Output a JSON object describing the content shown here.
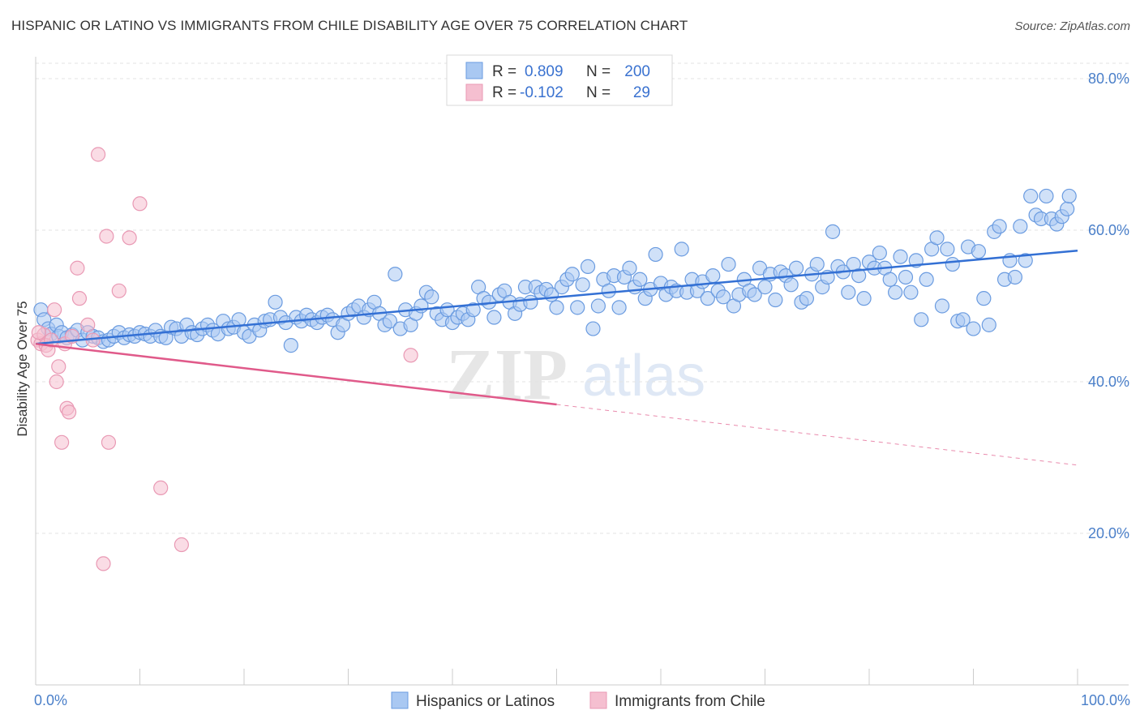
{
  "title": "HISPANIC OR LATINO VS IMMIGRANTS FROM CHILE DISABILITY AGE OVER 75 CORRELATION CHART",
  "source": "Source: ZipAtlas.com",
  "watermark": {
    "zip": "ZIP",
    "atlas": "atlas"
  },
  "colors": {
    "blue": "#a9c8f2",
    "blue_stroke": "#6a9be0",
    "blue_line": "#3370d4",
    "pink": "#f5bfd0",
    "pink_stroke": "#e999b4",
    "pink_line": "#e05a8a",
    "tick_text": "#4a7fc9",
    "grid": "#e3e3e3"
  },
  "legend": {
    "r_label": "R =",
    "n_label": "N =",
    "rows": [
      {
        "r": "0.809",
        "n": "200",
        "color": "blue"
      },
      {
        "r": "-0.102",
        "n": "29",
        "color": "pink"
      }
    ]
  },
  "chart_data": {
    "type": "scatter",
    "xlabel": "",
    "ylabel": "Disability Age Over 75",
    "xlim": [
      0,
      100
    ],
    "ylim": [
      0,
      85
    ],
    "x_tick_labels": [
      "0.0%",
      "100.0%"
    ],
    "y_ticks": [
      20,
      40,
      60,
      80
    ],
    "y_tick_labels": [
      "20.0%",
      "40.0%",
      "60.0%",
      "80.0%"
    ],
    "grid": true,
    "legend_position": "top-center",
    "series": [
      {
        "name": "Hispanics or Latinos",
        "color": "blue",
        "trendline": {
          "x": [
            0,
            100
          ],
          "y": [
            45.0,
            57.3
          ],
          "dashed_after": null
        },
        "points": [
          [
            0.5,
            49.5
          ],
          [
            0.8,
            48.2
          ],
          [
            1.2,
            47.0
          ],
          [
            1.5,
            46.3
          ],
          [
            2.0,
            47.5
          ],
          [
            2.2,
            46.0
          ],
          [
            2.5,
            46.5
          ],
          [
            3.0,
            45.8
          ],
          [
            3.5,
            46.2
          ],
          [
            4.0,
            46.8
          ],
          [
            4.5,
            45.5
          ],
          [
            5.0,
            46.5
          ],
          [
            5.5,
            46.0
          ],
          [
            6.0,
            45.8
          ],
          [
            6.5,
            45.3
          ],
          [
            7.0,
            45.5
          ],
          [
            7.5,
            46.0
          ],
          [
            8.0,
            46.5
          ],
          [
            8.5,
            45.8
          ],
          [
            9.0,
            46.2
          ],
          [
            9.5,
            46.0
          ],
          [
            10.0,
            46.5
          ],
          [
            10.5,
            46.3
          ],
          [
            11.0,
            46.0
          ],
          [
            11.5,
            46.8
          ],
          [
            12.0,
            46.0
          ],
          [
            12.5,
            45.8
          ],
          [
            13.0,
            47.2
          ],
          [
            13.5,
            47.0
          ],
          [
            14.0,
            46.0
          ],
          [
            14.5,
            47.5
          ],
          [
            15.0,
            46.5
          ],
          [
            15.5,
            46.2
          ],
          [
            16.0,
            47.0
          ],
          [
            16.5,
            47.5
          ],
          [
            17.0,
            46.8
          ],
          [
            17.5,
            46.3
          ],
          [
            18.0,
            48.0
          ],
          [
            18.5,
            47.0
          ],
          [
            19.0,
            47.2
          ],
          [
            19.5,
            48.2
          ],
          [
            20.0,
            46.5
          ],
          [
            20.5,
            46.0
          ],
          [
            21.0,
            47.5
          ],
          [
            21.5,
            46.8
          ],
          [
            22.0,
            48.0
          ],
          [
            22.5,
            48.2
          ],
          [
            23.0,
            50.5
          ],
          [
            23.5,
            48.5
          ],
          [
            24.0,
            47.8
          ],
          [
            24.5,
            44.8
          ],
          [
            25.0,
            48.5
          ],
          [
            25.5,
            48.0
          ],
          [
            26.0,
            48.8
          ],
          [
            26.5,
            48.2
          ],
          [
            27.0,
            47.8
          ],
          [
            27.5,
            48.5
          ],
          [
            28.0,
            48.8
          ],
          [
            28.5,
            48.2
          ],
          [
            29.0,
            46.5
          ],
          [
            29.5,
            47.5
          ],
          [
            30.0,
            49.0
          ],
          [
            30.5,
            49.5
          ],
          [
            31.0,
            50.0
          ],
          [
            31.5,
            48.5
          ],
          [
            32.0,
            49.5
          ],
          [
            32.5,
            50.5
          ],
          [
            33.0,
            49.0
          ],
          [
            33.5,
            47.5
          ],
          [
            34.0,
            48.0
          ],
          [
            34.5,
            54.2
          ],
          [
            35.0,
            47.0
          ],
          [
            35.5,
            49.5
          ],
          [
            36.0,
            47.5
          ],
          [
            36.5,
            49.0
          ],
          [
            37.0,
            50.0
          ],
          [
            37.5,
            51.8
          ],
          [
            38.0,
            51.2
          ],
          [
            38.5,
            49.0
          ],
          [
            39.0,
            48.2
          ],
          [
            39.5,
            49.5
          ],
          [
            40.0,
            47.8
          ],
          [
            40.5,
            48.5
          ],
          [
            41.0,
            49.0
          ],
          [
            41.5,
            48.2
          ],
          [
            42.0,
            49.5
          ],
          [
            42.5,
            52.5
          ],
          [
            43.0,
            51.0
          ],
          [
            43.5,
            50.5
          ],
          [
            44.0,
            48.5
          ],
          [
            44.5,
            51.5
          ],
          [
            45.0,
            52.0
          ],
          [
            45.5,
            50.5
          ],
          [
            46.0,
            49.0
          ],
          [
            46.5,
            50.2
          ],
          [
            47.0,
            52.5
          ],
          [
            47.5,
            50.5
          ],
          [
            48.0,
            52.5
          ],
          [
            48.5,
            51.8
          ],
          [
            49.0,
            52.2
          ],
          [
            49.5,
            51.5
          ],
          [
            50.0,
            49.8
          ],
          [
            50.5,
            52.5
          ],
          [
            51.0,
            53.5
          ],
          [
            51.5,
            54.2
          ],
          [
            52.0,
            49.8
          ],
          [
            52.5,
            52.8
          ],
          [
            53.0,
            55.2
          ],
          [
            53.5,
            47.0
          ],
          [
            54.0,
            50.0
          ],
          [
            54.5,
            53.5
          ],
          [
            55.0,
            52.0
          ],
          [
            55.5,
            54.0
          ],
          [
            56.0,
            49.8
          ],
          [
            56.5,
            53.8
          ],
          [
            57.0,
            55.0
          ],
          [
            57.5,
            52.5
          ],
          [
            58.0,
            53.5
          ],
          [
            58.5,
            51.0
          ],
          [
            59.0,
            52.2
          ],
          [
            59.5,
            56.8
          ],
          [
            60.0,
            53.0
          ],
          [
            60.5,
            51.5
          ],
          [
            61.0,
            52.5
          ],
          [
            61.5,
            52.0
          ],
          [
            62.0,
            57.5
          ],
          [
            62.5,
            51.8
          ],
          [
            63.0,
            53.5
          ],
          [
            63.5,
            52.0
          ],
          [
            64.0,
            53.2
          ],
          [
            64.5,
            51.0
          ],
          [
            65.0,
            54.0
          ],
          [
            65.5,
            52.0
          ],
          [
            66.0,
            51.2
          ],
          [
            66.5,
            55.5
          ],
          [
            67.0,
            50.0
          ],
          [
            67.5,
            51.5
          ],
          [
            68.0,
            53.5
          ],
          [
            68.5,
            52.0
          ],
          [
            69.0,
            51.5
          ],
          [
            69.5,
            55.0
          ],
          [
            70.0,
            52.5
          ],
          [
            70.5,
            54.2
          ],
          [
            71.0,
            50.8
          ],
          [
            71.5,
            54.5
          ],
          [
            72.0,
            54.0
          ],
          [
            72.5,
            52.8
          ],
          [
            73.0,
            55.0
          ],
          [
            73.5,
            50.5
          ],
          [
            74.0,
            51.0
          ],
          [
            74.5,
            54.2
          ],
          [
            75.0,
            55.5
          ],
          [
            75.5,
            52.5
          ],
          [
            76.0,
            53.8
          ],
          [
            76.5,
            59.8
          ],
          [
            77.0,
            55.2
          ],
          [
            77.5,
            54.5
          ],
          [
            78.0,
            51.8
          ],
          [
            78.5,
            55.5
          ],
          [
            79.0,
            54.0
          ],
          [
            79.5,
            51.0
          ],
          [
            80.0,
            55.8
          ],
          [
            80.5,
            55.0
          ],
          [
            81.0,
            57.0
          ],
          [
            81.5,
            55.0
          ],
          [
            82.0,
            53.5
          ],
          [
            82.5,
            51.8
          ],
          [
            83.0,
            56.5
          ],
          [
            83.5,
            53.8
          ],
          [
            84.0,
            51.8
          ],
          [
            84.5,
            56.0
          ],
          [
            85.0,
            48.2
          ],
          [
            85.5,
            53.5
          ],
          [
            86.0,
            57.5
          ],
          [
            86.5,
            59.0
          ],
          [
            87.0,
            50.0
          ],
          [
            87.5,
            57.5
          ],
          [
            88.0,
            55.5
          ],
          [
            88.5,
            48.0
          ],
          [
            89.0,
            48.2
          ],
          [
            89.5,
            57.8
          ],
          [
            90.0,
            47.0
          ],
          [
            90.5,
            57.2
          ],
          [
            91.0,
            51.0
          ],
          [
            91.5,
            47.5
          ],
          [
            92.0,
            59.8
          ],
          [
            92.5,
            60.5
          ],
          [
            93.0,
            53.5
          ],
          [
            93.5,
            56.0
          ],
          [
            94.0,
            53.8
          ],
          [
            94.5,
            60.5
          ],
          [
            95.0,
            56.0
          ],
          [
            95.5,
            64.5
          ],
          [
            96.0,
            62.0
          ],
          [
            96.5,
            61.5
          ],
          [
            97.0,
            64.5
          ],
          [
            97.5,
            61.5
          ],
          [
            98.0,
            60.8
          ],
          [
            98.5,
            61.8
          ],
          [
            99.0,
            62.8
          ],
          [
            99.2,
            64.5
          ]
        ]
      },
      {
        "name": "Immigrants from Chile",
        "color": "pink",
        "trendline": {
          "x": [
            0,
            50,
            100
          ],
          "y": [
            45.0,
            37.0,
            29.0
          ],
          "dashed_after": 50
        },
        "points": [
          [
            0.2,
            45.5
          ],
          [
            0.5,
            45.0
          ],
          [
            0.8,
            46.2
          ],
          [
            1.0,
            44.8
          ],
          [
            1.2,
            44.2
          ],
          [
            1.5,
            45.5
          ],
          [
            1.8,
            49.5
          ],
          [
            2.0,
            40.0
          ],
          [
            2.2,
            42.0
          ],
          [
            2.5,
            32.0
          ],
          [
            2.8,
            45.0
          ],
          [
            3.0,
            36.5
          ],
          [
            3.2,
            36.0
          ],
          [
            3.5,
            46.0
          ],
          [
            4.0,
            55.0
          ],
          [
            4.2,
            51.0
          ],
          [
            5.0,
            47.5
          ],
          [
            5.5,
            45.5
          ],
          [
            6.0,
            70.0
          ],
          [
            6.5,
            16.0
          ],
          [
            6.8,
            59.2
          ],
          [
            7.0,
            32.0
          ],
          [
            8.0,
            52.0
          ],
          [
            9.0,
            59.0
          ],
          [
            10.0,
            63.5
          ],
          [
            12.0,
            26.0
          ],
          [
            14.0,
            18.5
          ],
          [
            36.0,
            43.5
          ],
          [
            0.3,
            46.5
          ]
        ]
      }
    ]
  }
}
